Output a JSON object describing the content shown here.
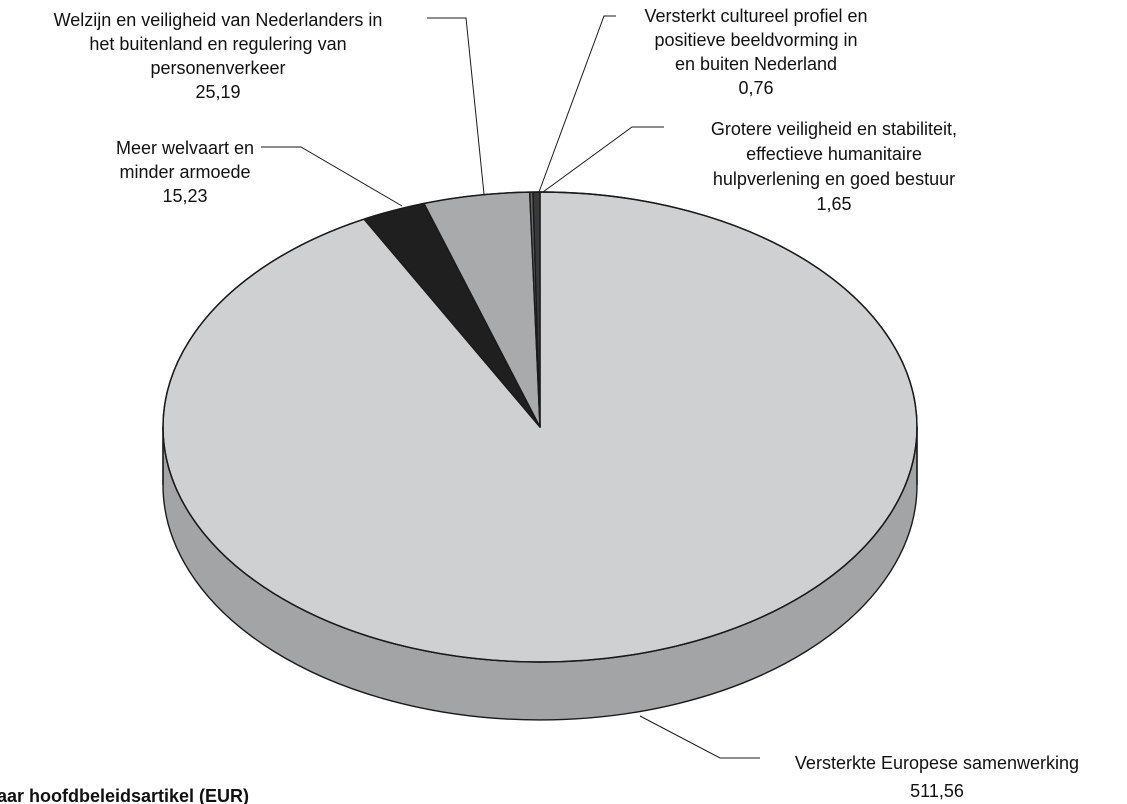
{
  "chart_data": {
    "type": "pie",
    "title": "",
    "style": "3d",
    "caption_partial": "...g naar hoofdbeleidsartikel... (EUR)",
    "unit": "EUR",
    "slices": [
      {
        "label_lines": [
          "Versterkte Europese samenwerking"
        ],
        "value_text": "511,56",
        "value": 511.56,
        "color": "#cfd0d2",
        "side_color": "#a3a4a6"
      },
      {
        "label_lines": [
          "Meer welvaart en",
          "minder armoede"
        ],
        "value_text": "15,23",
        "value": 15.23,
        "color": "#1f1f1f",
        "side_color": "#1f1f1f"
      },
      {
        "label_lines": [
          "Welzijn en veiligheid van Nederlanders in",
          "het buitenland en regulering van",
          "personenverkeer"
        ],
        "value_text": "25,19",
        "value": 25.19,
        "color": "#a9aaac",
        "side_color": "#808183"
      },
      {
        "label_lines": [
          "Versterkt cultureel profiel en",
          "positieve beeldvorming in",
          "en buiten Nederland"
        ],
        "value_text": "0,76",
        "value": 0.76,
        "color": "#666666",
        "side_color": "#4d4d4d"
      },
      {
        "label_lines": [
          "Grotere veiligheid en stabiliteit,",
          "effectieve humanitaire",
          "hulpverlening en goed bestuur"
        ],
        "value_text": "1,65",
        "value": 1.65,
        "color": "#3a3a3a",
        "side_color": "#2a2a2a"
      }
    ]
  },
  "caption": {
    "text": "naar hoofdbeleidsartikel (EUR)"
  }
}
